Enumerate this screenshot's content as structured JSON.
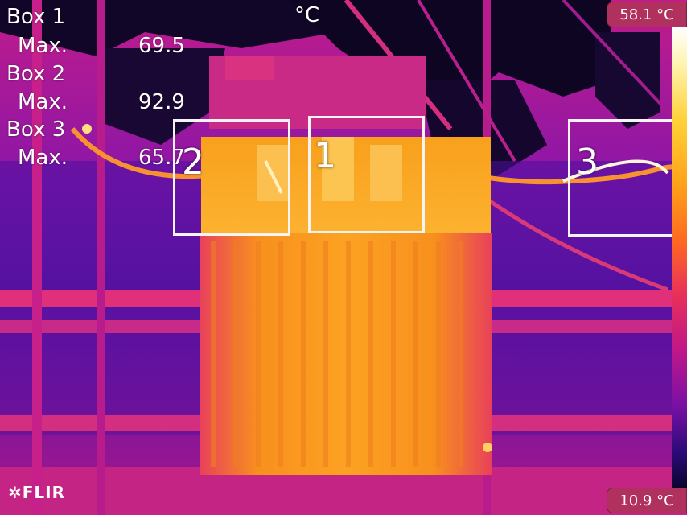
{
  "overlay": {
    "unit": "°C",
    "boxes": [
      {
        "label": "Box 1",
        "stat": "Max.",
        "value": "69.5",
        "num": "1"
      },
      {
        "label": "Box 2",
        "stat": "Max.",
        "value": "92.9",
        "num": "2"
      },
      {
        "label": "Box 3",
        "stat": "Max.",
        "value": "65.7",
        "num": "3"
      }
    ]
  },
  "scale": {
    "max_label": "58.1 °C",
    "min_label": "10.9 °C",
    "palette": [
      "#ffffff",
      "#ffd23a",
      "#ff6b1f",
      "#c01888",
      "#2e0a7a",
      "#0a0530"
    ]
  },
  "brand": {
    "logo": "FLIR"
  }
}
